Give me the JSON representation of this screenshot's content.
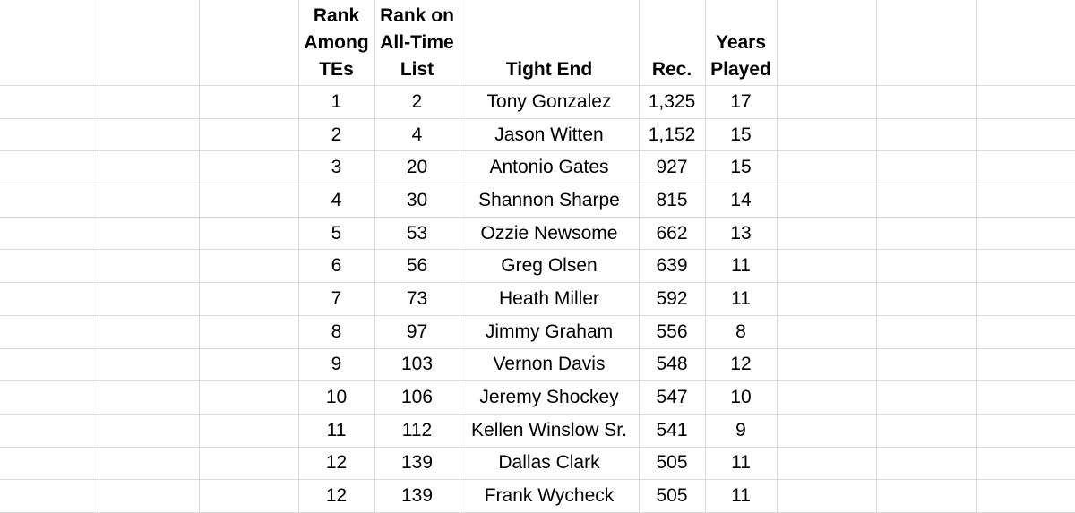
{
  "sheet": {
    "headers": [
      "Rank\nAmong\nTEs",
      "Rank on\nAll-Time\nList",
      "Tight End",
      "Rec.",
      "Years\nPlayed"
    ],
    "rows": [
      [
        "1",
        "2",
        "Tony Gonzalez",
        "1,325",
        "17"
      ],
      [
        "2",
        "4",
        "Jason Witten",
        "1,152",
        "15"
      ],
      [
        "3",
        "20",
        "Antonio Gates",
        "927",
        "15"
      ],
      [
        "4",
        "30",
        "Shannon Sharpe",
        "815",
        "14"
      ],
      [
        "5",
        "53",
        "Ozzie Newsome",
        "662",
        "13"
      ],
      [
        "6",
        "56",
        "Greg Olsen",
        "639",
        "11"
      ],
      [
        "7",
        "73",
        "Heath Miller",
        "592",
        "11"
      ],
      [
        "8",
        "97",
        "Jimmy Graham",
        "556",
        "8"
      ],
      [
        "9",
        "103",
        "Vernon Davis",
        "548",
        "12"
      ],
      [
        "10",
        "106",
        "Jeremy Shockey",
        "547",
        "10"
      ],
      [
        "11",
        "112",
        "Kellen Winslow Sr.",
        "541",
        "9"
      ],
      [
        "12",
        "139",
        "Dallas Clark",
        "505",
        "11"
      ],
      [
        "12",
        "139",
        "Frank Wycheck",
        "505",
        "11"
      ]
    ],
    "colors": {
      "gridline": "#d9d9d9",
      "text": "#000000",
      "background": "#ffffff"
    }
  }
}
